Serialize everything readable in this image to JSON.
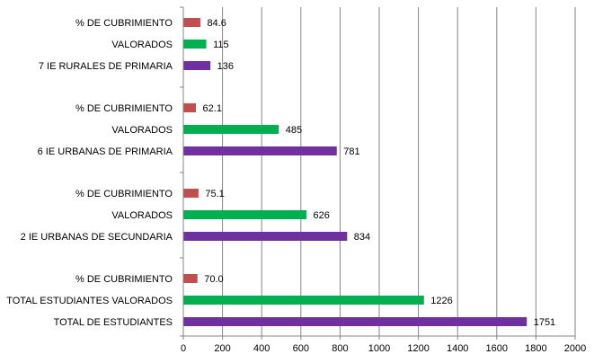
{
  "chart_data": {
    "type": "bar",
    "orientation": "horizontal",
    "grid": true,
    "xlim": [
      0,
      2000
    ],
    "x_ticks": [
      "0",
      "200",
      "400",
      "600",
      "800",
      "1000",
      "1200",
      "1400",
      "1600",
      "1800",
      "2000"
    ],
    "groups": [
      {
        "rows": [
          {
            "label": "% DE CUBRIMIENTO",
            "value": 84.6,
            "value_label": "84.6",
            "kind": "pct"
          },
          {
            "label": "VALORADOS",
            "value": 115,
            "value_label": "115",
            "kind": "valued"
          },
          {
            "label": "7 IE RURALES DE PRIMARIA",
            "value": 136,
            "value_label": "136",
            "kind": "total"
          }
        ]
      },
      {
        "rows": [
          {
            "label": "% DE CUBRIMIENTO",
            "value": 62.1,
            "value_label": "62.1",
            "kind": "pct"
          },
          {
            "label": "VALORADOS",
            "value": 485,
            "value_label": "485",
            "kind": "valued"
          },
          {
            "label": "6 IE URBANAS DE PRIMARIA",
            "value": 781,
            "value_label": "781",
            "kind": "total"
          }
        ]
      },
      {
        "rows": [
          {
            "label": "% DE CUBRIMIENTO",
            "value": 75.1,
            "value_label": "75.1",
            "kind": "pct"
          },
          {
            "label": "VALORADOS",
            "value": 626,
            "value_label": "626",
            "kind": "valued"
          },
          {
            "label": "2 IE URBANAS DE SECUNDARIA",
            "value": 834,
            "value_label": "834",
            "kind": "total"
          }
        ]
      },
      {
        "rows": [
          {
            "label": "% DE CUBRIMIENTO",
            "value": 70.0,
            "value_label": "70.0",
            "kind": "pct"
          },
          {
            "label": "TOTAL ESTUDIANTES VALORADOS",
            "value": 1226,
            "value_label": "1226",
            "kind": "valued"
          },
          {
            "label": "TOTAL DE ESTUDIANTES",
            "value": 1751,
            "value_label": "1751",
            "kind": "total"
          }
        ]
      }
    ],
    "colors": {
      "pct": "#c0504d",
      "valued": "#00b050",
      "total": "#7030a0",
      "grid": "#868686",
      "axis": "#868686"
    }
  }
}
